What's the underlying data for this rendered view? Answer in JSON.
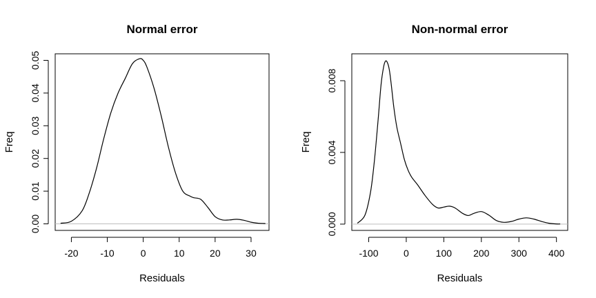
{
  "chart_data": [
    {
      "type": "line",
      "title": "Normal error",
      "xlabel": "Residuals",
      "ylabel": "Freq",
      "xlim": [
        -24.5,
        35
      ],
      "ylim": [
        -0.002,
        0.052
      ],
      "x_ticks": [
        -20,
        -10,
        0,
        10,
        20,
        30
      ],
      "x_tick_labels": [
        "-20",
        "-10",
        "0",
        "10",
        "20",
        "30"
      ],
      "y_ticks": [
        0.0,
        0.01,
        0.02,
        0.03,
        0.04,
        0.05
      ],
      "y_tick_labels": [
        "0.00",
        "0.01",
        "0.02",
        "0.03",
        "0.04",
        "0.05"
      ],
      "zero_line": true,
      "grid": false,
      "x": [
        -23,
        -20,
        -17,
        -15,
        -13,
        -11,
        -9,
        -7,
        -5,
        -3,
        -1,
        0,
        1,
        3,
        5,
        7,
        9,
        11,
        13,
        14,
        16,
        18,
        20,
        22,
        24,
        26,
        28,
        30,
        32,
        34
      ],
      "y": [
        0.0002,
        0.0008,
        0.004,
        0.0095,
        0.017,
        0.026,
        0.034,
        0.04,
        0.0445,
        0.049,
        0.0505,
        0.05,
        0.048,
        0.0415,
        0.033,
        0.0235,
        0.0155,
        0.01,
        0.0085,
        0.008,
        0.0075,
        0.005,
        0.0022,
        0.0012,
        0.0012,
        0.0014,
        0.0011,
        0.0005,
        0.0002,
        0.0001
      ]
    },
    {
      "type": "line",
      "title": "Non-normal error",
      "xlabel": "Residuals",
      "ylabel": "Freq",
      "xlim": [
        -145,
        430
      ],
      "ylim": [
        -0.00035,
        0.0095
      ],
      "x_ticks": [
        -100,
        0,
        100,
        200,
        300,
        400
      ],
      "x_tick_labels": [
        "-100",
        "0",
        "100",
        "200",
        "300",
        "400"
      ],
      "y_ticks": [
        0.0,
        0.004,
        0.008
      ],
      "y_tick_labels": [
        "0.000",
        "0.004",
        "0.008"
      ],
      "zero_line": true,
      "grid": false,
      "x": [
        -130,
        -110,
        -95,
        -85,
        -75,
        -67,
        -60,
        -55,
        -50,
        -45,
        -40,
        -33,
        -25,
        -15,
        -5,
        5,
        15,
        30,
        50,
        70,
        85,
        100,
        115,
        130,
        150,
        165,
        180,
        200,
        220,
        240,
        260,
        280,
        300,
        320,
        340,
        360,
        380,
        400,
        410
      ],
      "y": [
        5e-05,
        0.0005,
        0.0018,
        0.0035,
        0.0058,
        0.0078,
        0.0088,
        0.0091,
        0.009,
        0.0086,
        0.0078,
        0.0065,
        0.0054,
        0.0045,
        0.0036,
        0.003,
        0.0026,
        0.0022,
        0.0016,
        0.0011,
        0.0009,
        0.00095,
        0.001,
        0.0009,
        0.0006,
        0.00048,
        0.0006,
        0.0007,
        0.0005,
        0.0002,
        0.0001,
        0.00015,
        0.00028,
        0.00035,
        0.00028,
        0.00015,
        5e-05,
        1e-05,
        1e-05
      ]
    }
  ]
}
